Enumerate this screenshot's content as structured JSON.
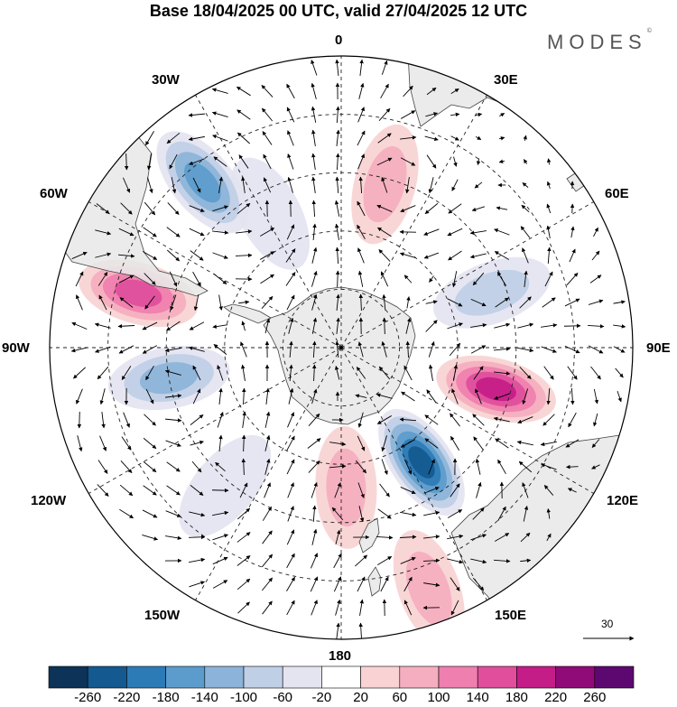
{
  "title": "Base 18/04/2025 00 UTC, valid 27/04/2025 12 UTC",
  "brand": "MODES",
  "brand_mark": "©",
  "longitude_labels": {
    "lon_0": "0",
    "lon_30e": "30E",
    "lon_60e": "60E",
    "lon_90e": "90E",
    "lon_120e": "120E",
    "lon_150e": "150E",
    "lon_180": "180",
    "lon_150w": "150W",
    "lon_120w": "120W",
    "lon_90w": "90W",
    "lon_60w": "60W",
    "lon_30w": "30W"
  },
  "vector_scale_label": "30",
  "colorbar": {
    "ticks": [
      "-260",
      "-220",
      "-180",
      "-140",
      "-100",
      "-60",
      "-20",
      "20",
      "60",
      "100",
      "140",
      "180",
      "220",
      "260"
    ],
    "colors": [
      "#0d3358",
      "#14598f",
      "#2c7bb6",
      "#5b9ccc",
      "#8cb3d9",
      "#bfcfe6",
      "#e4e4f1",
      "#ffffff",
      "#f9d3d3",
      "#f5aebf",
      "#ef7fae",
      "#e04e9c",
      "#c41d88",
      "#900b78",
      "#5d0870"
    ]
  },
  "anomaly_centers": [
    {
      "name": "negative-south-atlantic",
      "lon": -28,
      "lat_dist": 0.52,
      "value": -60
    },
    {
      "name": "negative-weddell",
      "lon": -40,
      "lat_dist": 0.74,
      "value": -180
    },
    {
      "name": "negative-bellingshausen",
      "lon": -100,
      "lat_dist": 0.6,
      "value": -140
    },
    {
      "name": "negative-pacific",
      "lon": -140,
      "lat_dist": 0.62,
      "value": -60
    },
    {
      "name": "negative-indian",
      "lon": 70,
      "lat_dist": 0.55,
      "value": -100
    },
    {
      "name": "negative-australia",
      "lon": 145,
      "lat_dist": 0.48,
      "value": -260
    },
    {
      "name": "positive-atlantic",
      "lon": 15,
      "lat_dist": 0.58,
      "value": 100
    },
    {
      "name": "positive-amundsen",
      "lon": -75,
      "lat_dist": 0.72,
      "value": 180
    },
    {
      "name": "positive-indian",
      "lon": 105,
      "lat_dist": 0.55,
      "value": 220
    },
    {
      "name": "positive-ross",
      "lon": 178,
      "lat_dist": 0.48,
      "value": 100
    },
    {
      "name": "positive-tasman",
      "lon": 160,
      "lat_dist": 0.88,
      "value": 100
    }
  ]
}
